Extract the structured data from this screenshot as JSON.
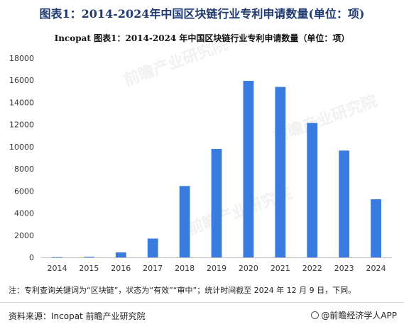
{
  "header": {
    "title": "图表1：2014-2024年中国区块链行业专利申请数量(单位：项)"
  },
  "chart_data": {
    "type": "bar",
    "title": "Incopat  图表1：2014-2024 年中国区块链行业专利申请数量（单位：项）",
    "categories": [
      "2014",
      "2015",
      "2016",
      "2017",
      "2018",
      "2019",
      "2020",
      "2021",
      "2022",
      "2023",
      "2024"
    ],
    "series": [
      {
        "values": [
          20,
          60,
          450,
          1700,
          6450,
          9800,
          15950,
          15400,
          12150,
          9650,
          5250
        ]
      }
    ],
    "xlabel": "",
    "ylabel": "",
    "ylim": [
      0,
      18000
    ],
    "yticks": [
      0,
      2000,
      4000,
      6000,
      8000,
      10000,
      12000,
      14000,
      16000,
      18000
    ],
    "grid": false,
    "legend": "none",
    "bar_color": "#3a7be0"
  },
  "footer": {
    "note": "注：专利查询关键词为“区块链”，状态为“有效”“审中”；统计时间截至 2024 年 12 月 9 日，下同。",
    "source": "资料来源：Incopat 前瞻产业研究院",
    "brand": "@前瞻经济学人APP",
    "brand_icon": "brand-logo-icon"
  },
  "watermark": {
    "text": "前瞻产业研究院"
  }
}
